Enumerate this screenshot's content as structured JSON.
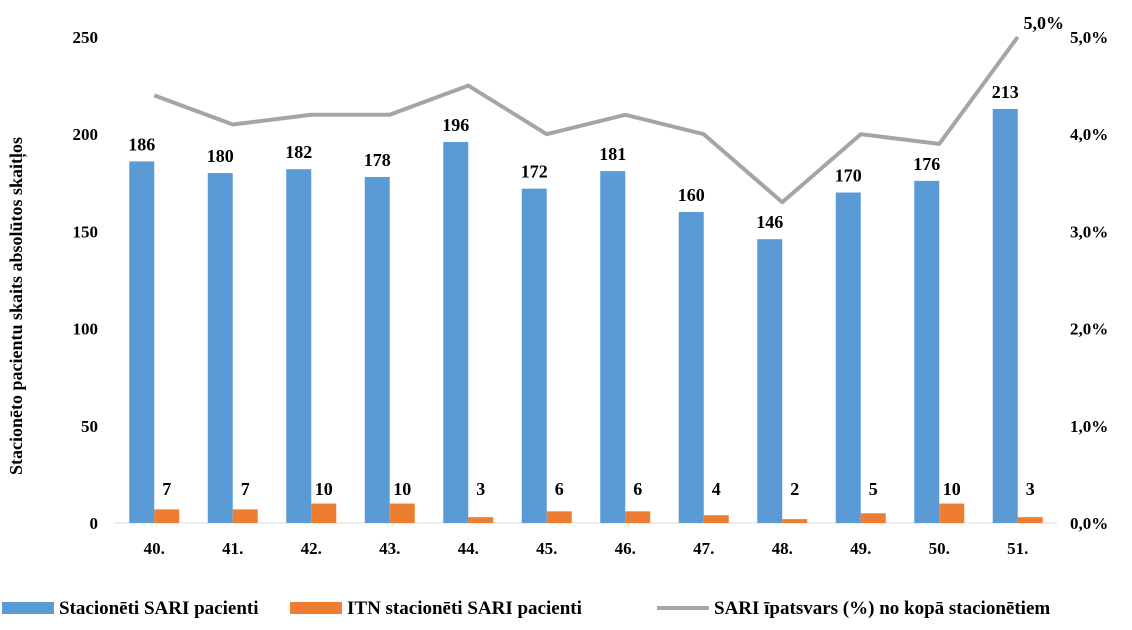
{
  "chart_data": {
    "type": "bar",
    "categories": [
      "40.",
      "41.",
      "42.",
      "43.",
      "44.",
      "45.",
      "46.",
      "47.",
      "48.",
      "49.",
      "50.",
      "51."
    ],
    "series": [
      {
        "name": "Stacionēti SARI pacienti",
        "type": "bar",
        "axis": "left",
        "color": "#5B9BD5",
        "values": [
          186,
          180,
          182,
          178,
          196,
          172,
          181,
          160,
          146,
          170,
          176,
          213
        ]
      },
      {
        "name": "ITN stacionēti SARI pacienti",
        "type": "bar",
        "axis": "left",
        "color": "#ED7D31",
        "values": [
          7,
          7,
          10,
          10,
          3,
          6,
          6,
          4,
          2,
          5,
          10,
          3
        ]
      },
      {
        "name": "SARI īpatsvars (%) no kopā stacionētiem",
        "type": "line",
        "axis": "right",
        "color": "#A5A5A5",
        "values": [
          4.4,
          4.1,
          4.2,
          4.2,
          4.5,
          4.0,
          4.2,
          4.0,
          3.3,
          4.0,
          3.9,
          5.0
        ],
        "labeled_point": {
          "index": 11,
          "label": "5,0%"
        }
      }
    ],
    "ylabel": "Stacionēto pacientu skaits absolūtos skaitļos",
    "xlabel": "",
    "ylim": [
      0,
      250
    ],
    "yticks": [
      "0",
      "50",
      "100",
      "150",
      "200",
      "250"
    ],
    "y2lim": [
      0,
      5
    ],
    "y2ticks": [
      "0,0%",
      "1,0%",
      "2,0%",
      "3,0%",
      "4,0%",
      "5,0%"
    ],
    "grid": false,
    "legend_position": "bottom"
  }
}
